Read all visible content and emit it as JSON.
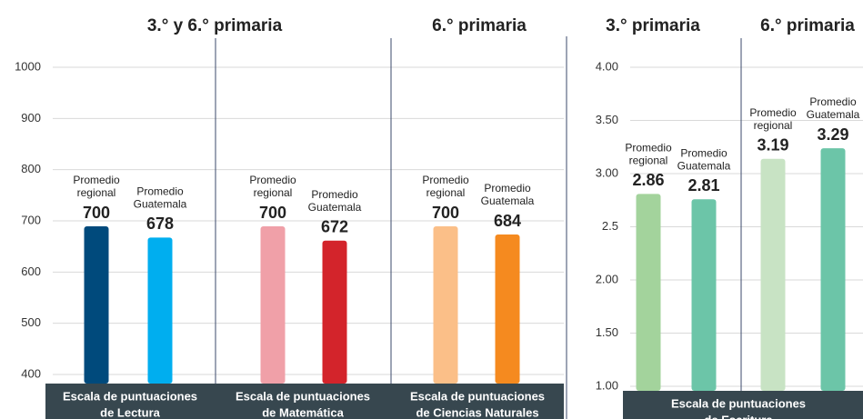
{
  "chart_data": [
    {
      "type": "bar",
      "ylim": [
        400,
        1000
      ],
      "yticks": [
        400,
        500,
        600,
        700,
        800,
        900,
        1000
      ],
      "headers": [
        "3.° y 6.° primaria",
        "6.° primaria"
      ],
      "groups": [
        {
          "footer": [
            "Escala de puntuaciones",
            "de Lectura"
          ],
          "categories": [
            [
              "Promedio",
              "regional"
            ],
            [
              "Promedio",
              "Guatemala"
            ]
          ],
          "values": [
            700,
            678
          ],
          "colors": [
            "#004a7c",
            "#00aeef"
          ]
        },
        {
          "footer": [
            "Escala de puntuaciones",
            "de Matemática"
          ],
          "categories": [
            [
              "Promedio",
              "regional"
            ],
            [
              "Promedio",
              "Guatemala"
            ]
          ],
          "values": [
            700,
            672
          ],
          "colors": [
            "#f0a0a8",
            "#d3242b"
          ]
        },
        {
          "footer": [
            "Escala de puntuaciones",
            "de Ciencias Naturales"
          ],
          "categories": [
            [
              "Promedio",
              "regional"
            ],
            [
              "Promedio",
              "Guatemala"
            ]
          ],
          "values": [
            700,
            684
          ],
          "colors": [
            "#fbbf88",
            "#f58a1f"
          ]
        }
      ]
    },
    {
      "type": "bar",
      "ylim": [
        1,
        4
      ],
      "yticks": [
        {
          "value": 1,
          "label": "1.00"
        },
        {
          "value": 1.5,
          "label": "1.50"
        },
        {
          "value": 2,
          "label": "2.00"
        },
        2.5,
        {
          "value": 3,
          "label": "3.00"
        },
        {
          "value": 3.5,
          "label": "3.50"
        },
        {
          "value": 4,
          "label": "4.00"
        }
      ],
      "footer": [
        "Escala de puntuaciones",
        "de Escritura"
      ],
      "groups": [
        {
          "header": "3.° primaria",
          "categories": [
            [
              "Promedio",
              "regional"
            ],
            [
              "Promedio",
              "Guatemala"
            ]
          ],
          "values": [
            2.86,
            2.81
          ],
          "colors": [
            "#a3d39c",
            "#6cc5a8"
          ]
        },
        {
          "header": "6.° primaria",
          "categories": [
            [
              "Promedio",
              "regional"
            ],
            [
              "Promedio",
              "Guatemala"
            ]
          ],
          "values": [
            3.19,
            3.29
          ],
          "colors": [
            "#c8e3c4",
            "#6cc5a8"
          ]
        }
      ]
    }
  ]
}
